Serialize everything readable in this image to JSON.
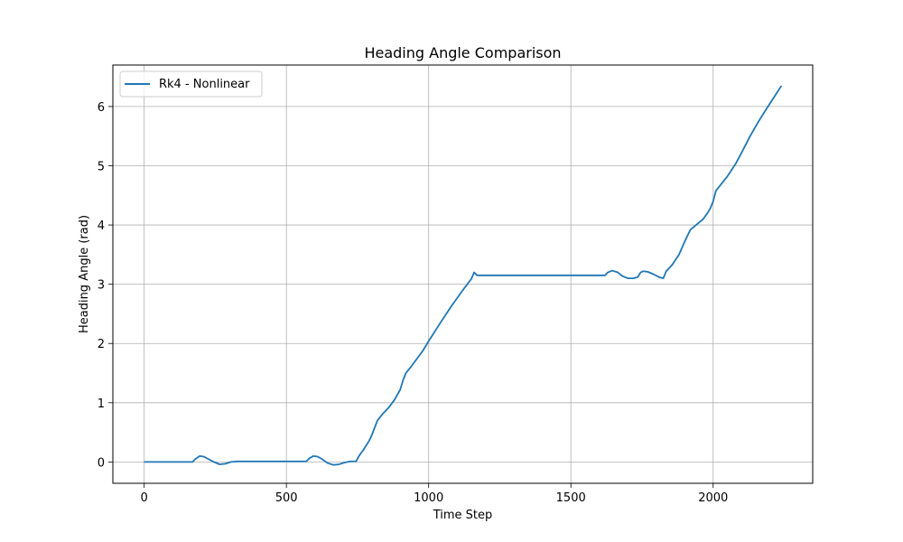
{
  "chart_data": {
    "type": "line",
    "title": "Heading Angle Comparison",
    "xlabel": "Time Step",
    "ylabel": "Heading Angle (rad)",
    "xlim": [
      -110,
      2350
    ],
    "ylim": [
      -0.36,
      6.7
    ],
    "xticks": [
      0,
      500,
      1000,
      1500,
      2000
    ],
    "yticks": [
      0,
      1,
      2,
      3,
      4,
      5,
      6
    ],
    "grid": true,
    "legend_position": "top-left",
    "series": [
      {
        "name": "Rk4 - Nonlinear",
        "color": "#1f77b4",
        "x": [
          0,
          170,
          180,
          195,
          210,
          225,
          245,
          265,
          285,
          305,
          330,
          570,
          580,
          595,
          610,
          625,
          645,
          665,
          685,
          705,
          725,
          745,
          755,
          770,
          790,
          800,
          820,
          840,
          860,
          880,
          900,
          910,
          920,
          940,
          960,
          980,
          1000,
          1040,
          1080,
          1120,
          1150,
          1160,
          1170,
          1200,
          1300,
          1400,
          1500,
          1620,
          1630,
          1645,
          1665,
          1680,
          1700,
          1720,
          1735,
          1745,
          1755,
          1770,
          1790,
          1810,
          1825,
          1835,
          1855,
          1880,
          1900,
          1920,
          1945,
          1965,
          1980,
          1990,
          2000,
          2010,
          2030,
          2050,
          2080,
          2100,
          2130,
          2160,
          2190,
          2220,
          2240
        ],
        "y": [
          0,
          0,
          0.05,
          0.1,
          0.09,
          0.05,
          0.0,
          -0.04,
          -0.03,
          0.0,
          0.01,
          0.01,
          0.06,
          0.1,
          0.09,
          0.05,
          -0.02,
          -0.05,
          -0.04,
          -0.01,
          0.01,
          0.01,
          0.1,
          0.2,
          0.35,
          0.45,
          0.7,
          0.82,
          0.92,
          1.05,
          1.22,
          1.38,
          1.5,
          1.62,
          1.75,
          1.88,
          2.04,
          2.34,
          2.63,
          2.9,
          3.09,
          3.2,
          3.15,
          3.15,
          3.15,
          3.15,
          3.15,
          3.15,
          3.2,
          3.23,
          3.2,
          3.14,
          3.1,
          3.1,
          3.12,
          3.2,
          3.22,
          3.21,
          3.17,
          3.12,
          3.1,
          3.22,
          3.32,
          3.5,
          3.72,
          3.92,
          4.02,
          4.1,
          4.2,
          4.28,
          4.4,
          4.58,
          4.7,
          4.82,
          5.04,
          5.22,
          5.5,
          5.75,
          5.98,
          6.2,
          6.35
        ]
      }
    ]
  }
}
